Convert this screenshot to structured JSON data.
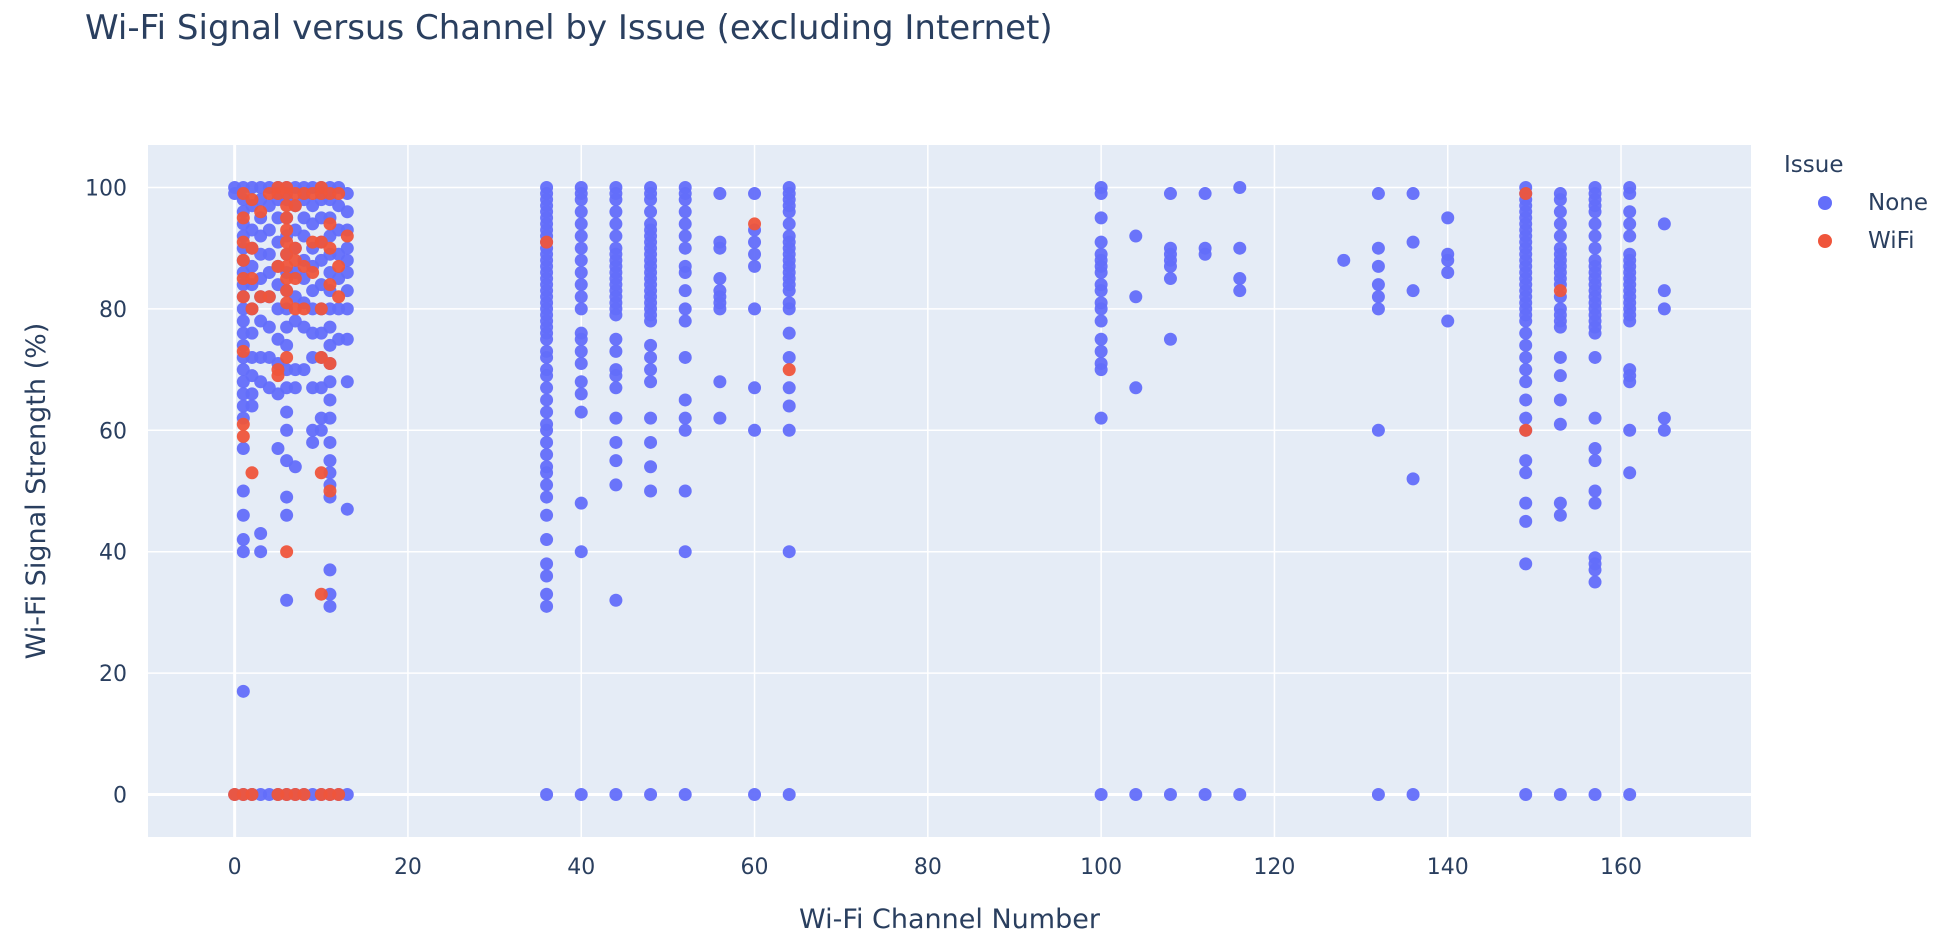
{
  "chart_data": {
    "type": "scatter",
    "title": "Wi-Fi Signal versus Channel by Issue (excluding Internet)",
    "xlabel": "Wi-Fi Channel Number",
    "ylabel": "Wi-Fi Signal Strength (%)",
    "xlim": [
      -10,
      175
    ],
    "ylim": [
      -7,
      107
    ],
    "x_ticks": [
      0,
      20,
      40,
      60,
      80,
      100,
      120,
      140,
      160
    ],
    "y_ticks": [
      0,
      20,
      40,
      60,
      80,
      100
    ],
    "grid": true,
    "plot_bgcolor": "#E5ECF6",
    "legend": {
      "title": "Issue",
      "placement": "top-right outside plot"
    },
    "series": [
      {
        "name": "None",
        "color": "#636EFA",
        "columns": [
          {
            "x": 0,
            "y": [
              100,
              99,
              0
            ]
          },
          {
            "x": 1,
            "y": [
              100,
              98,
              96,
              94,
              92,
              90,
              88,
              86,
              84,
              82,
              80,
              78,
              76,
              74,
              72,
              70,
              68,
              66,
              64,
              62,
              57,
              50,
              46,
              42,
              40,
              17,
              0
            ]
          },
          {
            "x": 2,
            "y": [
              100,
              97,
              93,
              90,
              87,
              84,
              80,
              76,
              72,
              69,
              66,
              64,
              0
            ]
          },
          {
            "x": 3,
            "y": [
              100,
              98,
              95,
              92,
              89,
              85,
              82,
              78,
              72,
              68,
              43,
              40,
              0
            ]
          },
          {
            "x": 4,
            "y": [
              100,
              97,
              93,
              89,
              86,
              82,
              77,
              72,
              67,
              0
            ]
          },
          {
            "x": 5,
            "y": [
              100,
              98,
              95,
              91,
              87,
              84,
              80,
              75,
              71,
              66,
              57,
              0
            ]
          },
          {
            "x": 6,
            "y": [
              100,
              98,
              95,
              92,
              89,
              86,
              83,
              80,
              77,
              74,
              70,
              67,
              63,
              60,
              55,
              49,
              46,
              32,
              0
            ]
          },
          {
            "x": 7,
            "y": [
              100,
              97,
              93,
              90,
              86,
              82,
              78,
              70,
              67,
              54,
              0
            ]
          },
          {
            "x": 8,
            "y": [
              100,
              98,
              95,
              92,
              88,
              85,
              81,
              77,
              70,
              0
            ]
          },
          {
            "x": 9,
            "y": [
              100,
              97,
              94,
              90,
              87,
              83,
              80,
              76,
              72,
              67,
              60,
              58,
              0
            ]
          },
          {
            "x": 10,
            "y": [
              100,
              98,
              95,
              91,
              88,
              84,
              80,
              76,
              72,
              67,
              62,
              60,
              0
            ]
          },
          {
            "x": 11,
            "y": [
              100,
              98,
              95,
              92,
              89,
              86,
              83,
              80,
              77,
              74,
              71,
              68,
              65,
              62,
              58,
              55,
              53,
              51,
              49,
              37,
              33,
              31,
              0
            ]
          },
          {
            "x": 12,
            "y": [
              100,
              97,
              93,
              89,
              85,
              80,
              75,
              0
            ]
          },
          {
            "x": 13,
            "y": [
              99,
              96,
              93,
              90,
              88,
              86,
              83,
              80,
              75,
              68,
              47,
              0
            ]
          },
          {
            "x": 36,
            "y": [
              100,
              99,
              98,
              97,
              96,
              95,
              94,
              93,
              92,
              91,
              90,
              89,
              88,
              87,
              86,
              85,
              84,
              83,
              82,
              81,
              80,
              79,
              78,
              77,
              76,
              75,
              73,
              72,
              70,
              69,
              67,
              65,
              63,
              61,
              60,
              58,
              56,
              54,
              53,
              51,
              49,
              46,
              42,
              38,
              36,
              33,
              31,
              0
            ]
          },
          {
            "x": 40,
            "y": [
              100,
              99,
              98,
              96,
              94,
              92,
              90,
              88,
              86,
              84,
              82,
              80,
              76,
              75,
              73,
              71,
              68,
              66,
              63,
              48,
              40,
              0
            ]
          },
          {
            "x": 44,
            "y": [
              100,
              99,
              98,
              96,
              94,
              92,
              90,
              89,
              88,
              87,
              86,
              85,
              84,
              83,
              82,
              81,
              80,
              79,
              75,
              73,
              70,
              69,
              67,
              62,
              58,
              55,
              51,
              32,
              0
            ]
          },
          {
            "x": 48,
            "y": [
              100,
              99,
              98,
              96,
              94,
              93,
              92,
              91,
              90,
              89,
              88,
              87,
              86,
              85,
              84,
              83,
              82,
              81,
              80,
              79,
              78,
              74,
              72,
              70,
              68,
              62,
              58,
              54,
              50,
              0
            ]
          },
          {
            "x": 52,
            "y": [
              100,
              99,
              98,
              96,
              94,
              92,
              90,
              87,
              86,
              83,
              80,
              78,
              72,
              65,
              62,
              60,
              50,
              40,
              0
            ]
          },
          {
            "x": 56,
            "y": [
              99,
              91,
              90,
              85,
              83,
              82,
              81,
              80,
              68,
              62
            ]
          },
          {
            "x": 60,
            "y": [
              99,
              93,
              91,
              89,
              87,
              80,
              67,
              60,
              0
            ]
          },
          {
            "x": 64,
            "y": [
              100,
              99,
              98,
              97,
              96,
              94,
              92,
              91,
              90,
              89,
              88,
              87,
              86,
              85,
              84,
              83,
              81,
              80,
              76,
              72,
              67,
              64,
              60,
              40,
              0
            ]
          },
          {
            "x": 100,
            "y": [
              100,
              99,
              95,
              91,
              89,
              88,
              87,
              86,
              84,
              83,
              81,
              80,
              78,
              75,
              73,
              71,
              70,
              62,
              0
            ]
          },
          {
            "x": 104,
            "y": [
              92,
              82,
              67,
              0
            ]
          },
          {
            "x": 108,
            "y": [
              99,
              90,
              89,
              88,
              87,
              85,
              75,
              0
            ]
          },
          {
            "x": 112,
            "y": [
              99,
              90,
              89,
              0
            ]
          },
          {
            "x": 116,
            "y": [
              100,
              90,
              85,
              83,
              0
            ]
          },
          {
            "x": 128,
            "y": [
              88
            ]
          },
          {
            "x": 132,
            "y": [
              99,
              90,
              87,
              84,
              82,
              80,
              60,
              0
            ]
          },
          {
            "x": 136,
            "y": [
              99,
              91,
              83,
              52,
              0
            ]
          },
          {
            "x": 140,
            "y": [
              95,
              89,
              88,
              86,
              78
            ]
          },
          {
            "x": 149,
            "y": [
              100,
              99,
              98,
              97,
              96,
              95,
              94,
              93,
              92,
              91,
              90,
              89,
              88,
              87,
              86,
              85,
              84,
              83,
              82,
              81,
              80,
              79,
              78,
              76,
              74,
              72,
              70,
              68,
              65,
              62,
              60,
              55,
              53,
              48,
              45,
              38,
              0
            ]
          },
          {
            "x": 153,
            "y": [
              99,
              98,
              96,
              94,
              92,
              90,
              89,
              88,
              87,
              86,
              85,
              84,
              82,
              80,
              79,
              78,
              77,
              72,
              69,
              65,
              61,
              48,
              46,
              0
            ]
          },
          {
            "x": 157,
            "y": [
              100,
              99,
              98,
              97,
              96,
              94,
              92,
              90,
              88,
              87,
              86,
              85,
              84,
              83,
              82,
              81,
              80,
              79,
              78,
              77,
              76,
              72,
              62,
              57,
              55,
              50,
              48,
              39,
              38,
              37,
              35,
              0
            ]
          },
          {
            "x": 161,
            "y": [
              100,
              99,
              96,
              94,
              92,
              89,
              88,
              87,
              86,
              85,
              84,
              83,
              82,
              81,
              80,
              79,
              78,
              70,
              69,
              68,
              60,
              53,
              0
            ]
          },
          {
            "x": 165,
            "y": [
              94,
              83,
              80,
              62,
              60
            ]
          }
        ]
      },
      {
        "name": "WiFi",
        "color": "#EF553B",
        "columns": [
          {
            "x": 0,
            "y": [
              0
            ]
          },
          {
            "x": 1,
            "y": [
              99,
              95,
              91,
              88,
              85,
              82,
              73,
              61,
              59,
              0
            ]
          },
          {
            "x": 2,
            "y": [
              98,
              90,
              85,
              80,
              53,
              0
            ]
          },
          {
            "x": 3,
            "y": [
              96,
              82
            ]
          },
          {
            "x": 4,
            "y": [
              99,
              82
            ]
          },
          {
            "x": 5,
            "y": [
              100,
              99,
              87,
              70,
              69,
              0
            ]
          },
          {
            "x": 6,
            "y": [
              100,
              99,
              97,
              95,
              93,
              91,
              89,
              87,
              85,
              83,
              81,
              72,
              40,
              0
            ]
          },
          {
            "x": 7,
            "y": [
              99,
              97,
              90,
              88,
              85,
              80,
              0
            ]
          },
          {
            "x": 8,
            "y": [
              99,
              87,
              80,
              0
            ]
          },
          {
            "x": 9,
            "y": [
              99,
              91,
              86
            ]
          },
          {
            "x": 10,
            "y": [
              100,
              99,
              91,
              80,
              72,
              53,
              33,
              0
            ]
          },
          {
            "x": 11,
            "y": [
              99,
              94,
              90,
              84,
              71,
              50,
              0
            ]
          },
          {
            "x": 12,
            "y": [
              99,
              87,
              82,
              0
            ]
          },
          {
            "x": 13,
            "y": [
              92
            ]
          },
          {
            "x": 36,
            "y": [
              91
            ]
          },
          {
            "x": 60,
            "y": [
              94
            ]
          },
          {
            "x": 64,
            "y": [
              70
            ]
          },
          {
            "x": 149,
            "y": [
              99,
              60
            ]
          },
          {
            "x": 153,
            "y": [
              83
            ]
          }
        ]
      }
    ]
  }
}
